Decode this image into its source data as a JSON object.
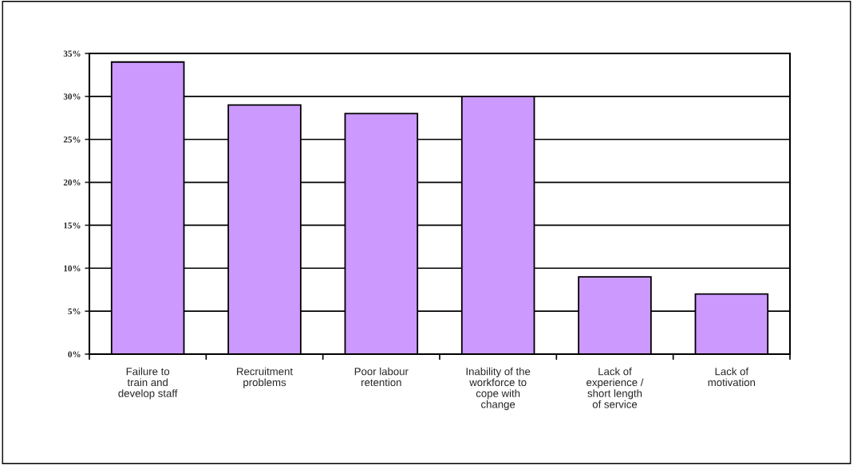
{
  "chart_data": {
    "type": "bar",
    "categories": [
      "Failure to\ntrain and\ndevelop staff",
      "Recruitment\nproblems",
      "Poor labour\nretention",
      "Inability of the\nworkforce to\ncope with\nchange",
      "Lack of\nexperience /\nshort length\nof service",
      "Lack of\nmotivation"
    ],
    "values": [
      34,
      29,
      28,
      30,
      9,
      7
    ],
    "color": "#cc99ff",
    "ylim": [
      0,
      35
    ],
    "yticks": [
      {
        "value": 0,
        "label": "0%"
      },
      {
        "value": 5,
        "label": "5%"
      },
      {
        "value": 10,
        "label": "10%"
      },
      {
        "value": 15,
        "label": "15%"
      },
      {
        "value": 20,
        "label": "20%"
      },
      {
        "value": 25,
        "label": "25%"
      },
      {
        "value": 30,
        "label": "30%"
      },
      {
        "value": 35,
        "label": "35%"
      }
    ],
    "grid": "y"
  }
}
